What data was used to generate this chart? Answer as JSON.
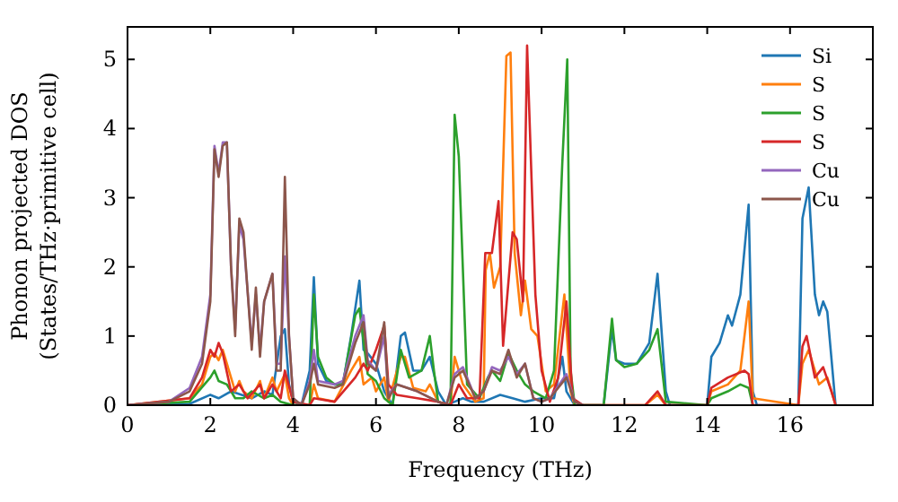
{
  "chart_data": {
    "type": "line",
    "xlabel": "Frequency (THz)",
    "ylabel": "Phonon projected DOS\n(States/THz·primitive cell)",
    "xlim": [
      0,
      18
    ],
    "ylim": [
      0,
      5.47
    ],
    "xticks": [
      0,
      2,
      4,
      6,
      8,
      10,
      12,
      14,
      16
    ],
    "yticks": [
      0,
      1,
      2,
      3,
      4,
      5
    ],
    "legend": "top right",
    "grid": false,
    "series": [
      {
        "name": "Si",
        "color": "#1f77b4",
        "x": [
          0,
          1.5,
          2,
          2.2,
          2.5,
          3,
          3.3,
          3.5,
          3.7,
          3.8,
          3.9,
          4,
          4.2,
          4.4,
          4.5,
          4.6,
          4.8,
          5,
          5.2,
          5.4,
          5.6,
          5.7,
          5.8,
          6,
          6.2,
          6.4,
          6.6,
          6.7,
          6.9,
          7.1,
          7.3,
          7.5,
          7.7,
          7.9,
          8.1,
          8.3,
          8.6,
          9,
          9.3,
          9.6,
          10,
          10.3,
          10.5,
          10.6,
          10.8,
          11.5,
          11.7,
          11.8,
          12,
          12.3,
          12.6,
          12.8,
          13,
          13.1,
          14,
          14.1,
          14.3,
          14.5,
          14.6,
          14.8,
          15,
          15.1,
          15.2,
          16.2,
          16.3,
          16.45,
          16.6,
          16.7,
          16.8,
          16.9,
          17.1
        ],
        "values": [
          0,
          0.02,
          0.15,
          0.1,
          0.2,
          0.1,
          0.2,
          0.15,
          1,
          1.1,
          0.3,
          0.05,
          0,
          0.5,
          1.85,
          0.6,
          0.35,
          0.3,
          0.3,
          1,
          1.8,
          0.8,
          0.75,
          0.6,
          0.2,
          0,
          1,
          1.05,
          0.5,
          0.5,
          0.7,
          0.2,
          0,
          0.05,
          0.1,
          0.05,
          0.05,
          0.15,
          0.1,
          0.05,
          0.1,
          0.1,
          0.7,
          0.2,
          0,
          0,
          1.1,
          0.65,
          0.6,
          0.6,
          0.9,
          1.9,
          0.2,
          0,
          0,
          0.7,
          0.9,
          1.3,
          1.15,
          1.6,
          2.9,
          0.2,
          0,
          0,
          2.7,
          3.15,
          1.6,
          1.3,
          1.5,
          1.35,
          0
        ]
      },
      {
        "name": "S",
        "color": "#ff7f0e",
        "x": [
          0,
          1.5,
          1.8,
          2,
          2.1,
          2.2,
          2.3,
          2.4,
          2.6,
          2.7,
          2.8,
          3,
          3.2,
          3.3,
          3.5,
          3.6,
          3.8,
          3.9,
          4,
          4.4,
          4.5,
          4.6,
          5,
          5.4,
          5.6,
          5.7,
          5.9,
          6,
          6.2,
          6.3,
          6.6,
          6.7,
          6.9,
          7.2,
          7.3,
          7.5,
          7.8,
          7.9,
          8.1,
          8.4,
          8.6,
          8.65,
          8.75,
          8.85,
          9,
          9.15,
          9.25,
          9.35,
          9.5,
          9.6,
          9.75,
          9.9,
          10.1,
          10.3,
          10.55,
          10.7,
          10.8,
          12.5,
          12.8,
          13,
          14,
          14.1,
          14.5,
          14.8,
          15,
          15.1,
          16.2,
          16.3,
          16.45,
          16.7,
          16.9,
          17.1
        ],
        "values": [
          0,
          0.1,
          0.3,
          0.7,
          0.75,
          0.65,
          0.8,
          0.6,
          0.2,
          0.35,
          0.2,
          0.1,
          0.35,
          0.1,
          0.4,
          0.2,
          0.45,
          0.1,
          0,
          0,
          0.3,
          0.1,
          0.05,
          0.5,
          0.7,
          0.3,
          0.4,
          0.2,
          0.4,
          0.05,
          0.7,
          0.7,
          0.25,
          0.2,
          0.3,
          0.05,
          0,
          0.7,
          0.3,
          0.05,
          0.1,
          1.95,
          2.2,
          1.7,
          2,
          5.05,
          5.1,
          2.2,
          1.3,
          1.8,
          1.1,
          1,
          0.2,
          0.3,
          1.6,
          0.2,
          0,
          0,
          0.15,
          0,
          0,
          0.2,
          0.3,
          0.5,
          1.5,
          0.1,
          0,
          0.6,
          0.8,
          0.3,
          0.4,
          0
        ]
      },
      {
        "name": "S",
        "color": "#2ca02c",
        "x": [
          0,
          1.5,
          2,
          2.1,
          2.2,
          2.4,
          2.6,
          2.8,
          3,
          3.3,
          3.5,
          3.7,
          4,
          4.4,
          4.5,
          4.6,
          4.8,
          5,
          5.2,
          5.5,
          5.6,
          5.8,
          6,
          6.2,
          6.4,
          6.6,
          6.8,
          7.1,
          7.3,
          7.4,
          7.5,
          7.8,
          7.9,
          8,
          8.2,
          8.5,
          8.7,
          8.8,
          9,
          9.2,
          9.4,
          9.6,
          9.8,
          10.1,
          10.3,
          10.5,
          10.62,
          10.7,
          10.8,
          11.5,
          11.7,
          11.8,
          12,
          12.3,
          12.6,
          12.8,
          13,
          14,
          14.1,
          14.5,
          14.8,
          15,
          15.1
        ],
        "values": [
          0,
          0.05,
          0.4,
          0.5,
          0.35,
          0.3,
          0.1,
          0.1,
          0.2,
          0.1,
          0.15,
          0.05,
          0,
          0,
          1.6,
          0.7,
          0.4,
          0.3,
          0.3,
          1.3,
          1.4,
          0.45,
          0.35,
          0.1,
          0,
          0.8,
          0.4,
          0.5,
          1,
          0.5,
          0.05,
          0,
          4.2,
          3.6,
          0.3,
          0.1,
          0.4,
          0.5,
          0.35,
          0.75,
          0.5,
          0.3,
          0.2,
          0.1,
          0.5,
          3.5,
          5,
          0.5,
          0,
          0,
          1.25,
          0.65,
          0.55,
          0.6,
          0.8,
          1.1,
          0.05,
          0,
          0.1,
          0.2,
          0.3,
          0.25,
          0
        ]
      },
      {
        "name": "S",
        "color": "#d62728",
        "x": [
          0,
          1.5,
          1.8,
          2,
          2.1,
          2.2,
          2.3,
          2.5,
          2.7,
          2.9,
          3.2,
          3.3,
          3.5,
          3.7,
          3.8,
          4,
          4.4,
          4.5,
          5,
          5.5,
          5.7,
          5.8,
          6,
          6.2,
          6.3,
          6.5,
          7,
          7.5,
          7.8,
          8,
          8.2,
          8.5,
          8.64,
          8.8,
          8.96,
          9.07,
          9.3,
          9.4,
          9.55,
          9.65,
          9.85,
          10,
          10.2,
          10.4,
          10.6,
          10.75,
          11,
          12.5,
          12.8,
          13,
          14,
          14.1,
          14.5,
          14.9,
          15,
          15.1,
          16.2,
          16.3,
          16.4,
          16.6,
          16.8,
          17,
          17.1
        ],
        "values": [
          0,
          0.1,
          0.4,
          0.8,
          0.7,
          0.9,
          0.75,
          0.2,
          0.3,
          0.1,
          0.3,
          0.1,
          0.3,
          0.1,
          0.5,
          0.05,
          0,
          0.1,
          0.05,
          0.4,
          0.6,
          0.5,
          0.8,
          1.15,
          0.3,
          0.15,
          0.1,
          0.05,
          0,
          0.3,
          0.1,
          0.1,
          2.2,
          2.2,
          2.95,
          0.86,
          2.5,
          2.4,
          1.5,
          5.2,
          1.6,
          0.5,
          0.05,
          0.4,
          1.5,
          0.1,
          0,
          0,
          0.2,
          0,
          0,
          0.25,
          0.4,
          0.5,
          0.45,
          0,
          0,
          0.85,
          1,
          0.4,
          0.55,
          0.2,
          0
        ]
      },
      {
        "name": "Cu",
        "color": "#9467bd",
        "x": [
          0,
          1,
          1.5,
          1.8,
          2,
          2.1,
          2.2,
          2.3,
          2.4,
          2.5,
          2.6,
          2.7,
          2.8,
          3,
          3.1,
          3.2,
          3.3,
          3.5,
          3.6,
          3.7,
          3.8,
          3.9,
          4,
          4.2,
          4.4,
          4.5,
          4.6,
          5,
          5.2,
          5.5,
          5.7,
          5.8,
          6,
          6.2,
          6.3,
          6.5,
          7,
          7.5,
          7.7,
          7.9,
          8.1,
          8.4,
          8.6,
          8.8,
          9,
          9.2,
          9.4,
          9.6,
          9.8,
          10,
          10.2,
          10.6,
          10.8,
          11
        ],
        "values": [
          0,
          0.05,
          0.25,
          0.7,
          1.6,
          3.75,
          3.35,
          3.8,
          3.8,
          2,
          1.1,
          2.6,
          2.4,
          0.9,
          1.6,
          0.8,
          1.5,
          1.9,
          0.6,
          0.6,
          2.15,
          1,
          0.1,
          0,
          0.35,
          0.8,
          0.35,
          0.3,
          0.35,
          1,
          1.3,
          0.65,
          0.5,
          1,
          0.15,
          0.3,
          0.2,
          0.05,
          0,
          0.45,
          0.55,
          0.1,
          0.2,
          0.55,
          0.5,
          0.7,
          0.45,
          0.6,
          0.1,
          0.05,
          0.1,
          0.45,
          0.05,
          0
        ]
      },
      {
        "name": "Cu",
        "color": "#8c564b",
        "x": [
          0,
          1,
          1.5,
          1.8,
          2,
          2.1,
          2.2,
          2.3,
          2.4,
          2.5,
          2.6,
          2.7,
          2.8,
          3,
          3.1,
          3.2,
          3.3,
          3.5,
          3.6,
          3.7,
          3.8,
          3.9,
          4,
          4.2,
          4.4,
          4.5,
          4.6,
          5,
          5.2,
          5.5,
          5.7,
          5.8,
          6,
          6.2,
          6.3,
          6.5,
          7,
          7.5,
          7.7,
          7.9,
          8.1,
          8.4,
          8.6,
          8.8,
          9,
          9.2,
          9.4,
          9.6,
          9.8,
          10,
          10.2,
          10.6,
          10.8,
          11
        ],
        "values": [
          0,
          0.05,
          0.2,
          0.6,
          1.5,
          3.7,
          3.3,
          3.75,
          3.8,
          2,
          1,
          2.7,
          2.5,
          0.8,
          1.7,
          0.7,
          1.5,
          1.9,
          0.5,
          0.5,
          3.3,
          1,
          0.1,
          0,
          0.3,
          0.6,
          0.3,
          0.25,
          0.3,
          0.9,
          1.2,
          0.6,
          0.5,
          1.2,
          0.1,
          0.3,
          0.2,
          0.05,
          0,
          0.4,
          0.5,
          0.1,
          0.2,
          0.5,
          0.45,
          0.8,
          0.4,
          0.6,
          0.1,
          0.05,
          0.1,
          0.4,
          0.05,
          0
        ]
      }
    ]
  }
}
